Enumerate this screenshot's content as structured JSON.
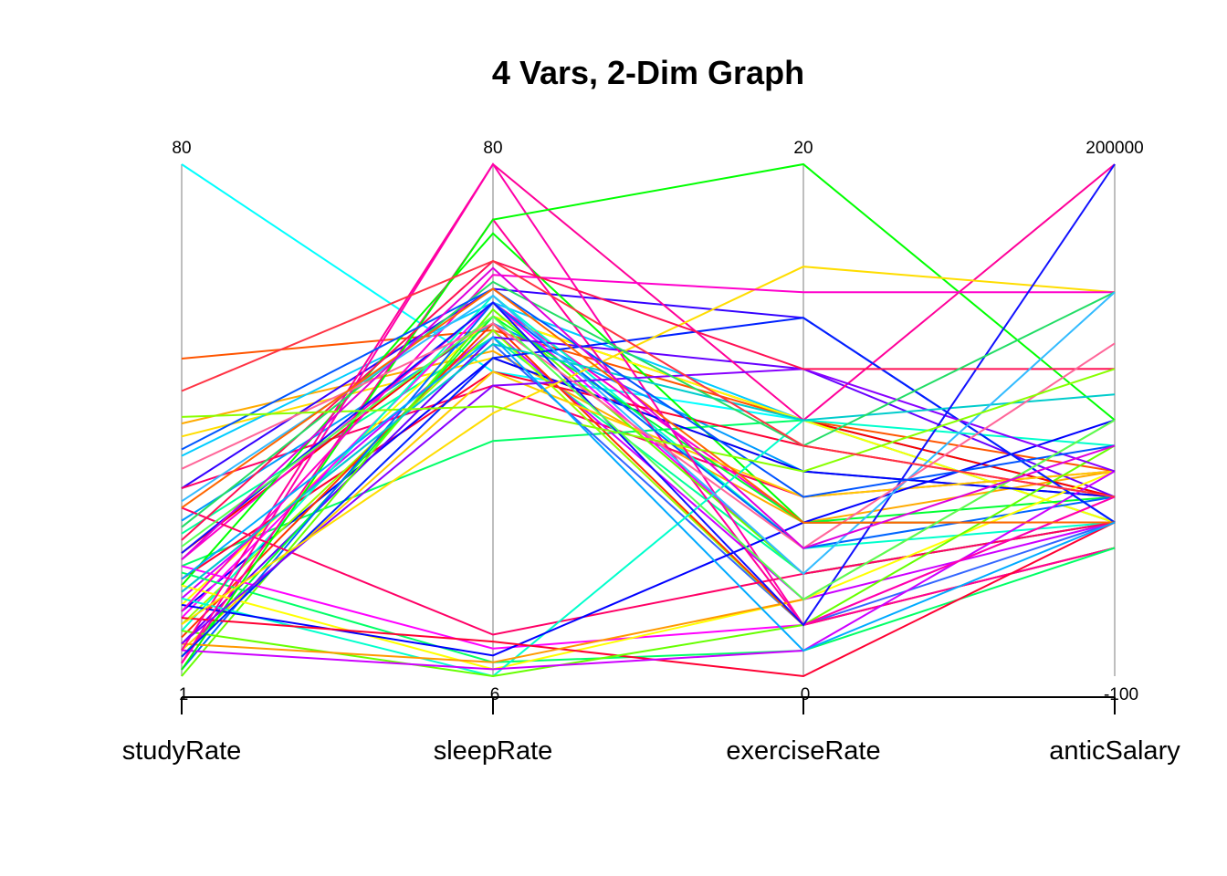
{
  "chart_data": {
    "type": "parallel_coordinates",
    "title": "4 Vars, 2-Dim Graph",
    "axes": [
      {
        "name": "studyRate",
        "min": 1,
        "max": 80,
        "min_label": "1",
        "max_label": "80"
      },
      {
        "name": "sleepRate",
        "min": 6,
        "max": 80,
        "min_label": "6",
        "max_label": "80"
      },
      {
        "name": "exerciseRate",
        "min": 0,
        "max": 20,
        "min_label": "0",
        "max_label": "20"
      },
      {
        "name": "anticSalary",
        "min": -100,
        "max": 200000,
        "min_label": "-100",
        "max_label": "200000"
      }
    ],
    "grid": false,
    "legend": "none",
    "records": [
      {
        "values": [
          80,
          50,
          10,
          60000
        ],
        "color": "#00FFFF"
      },
      {
        "values": [
          50,
          56,
          10,
          80000
        ],
        "color": "#FF5500"
      },
      {
        "values": [
          40,
          53,
          6,
          80000
        ],
        "color": "#FFAA00"
      },
      {
        "values": [
          38,
          52,
          8,
          70000
        ],
        "color": "#FFDD00"
      },
      {
        "values": [
          35,
          60,
          10,
          70000
        ],
        "color": "#00CCFF"
      },
      {
        "values": [
          30,
          62,
          14,
          60000
        ],
        "color": "#3300FF"
      },
      {
        "values": [
          30,
          48,
          7,
          80000
        ],
        "color": "#FF0066"
      },
      {
        "values": [
          25,
          57,
          8,
          70000
        ],
        "color": "#0099FF"
      },
      {
        "values": [
          23,
          55,
          4,
          60000
        ],
        "color": "#00FF99"
      },
      {
        "values": [
          20,
          58,
          10,
          70000
        ],
        "color": "#FF0000"
      },
      {
        "values": [
          19,
          60,
          6,
          60000
        ],
        "color": "#FF00CC"
      },
      {
        "values": [
          18,
          40,
          10,
          60000
        ],
        "color": "#00FF66"
      },
      {
        "values": [
          16,
          50,
          9,
          70000
        ],
        "color": "#FF0033"
      },
      {
        "values": [
          15,
          70,
          6,
          60000
        ],
        "color": "#00FF00"
      },
      {
        "values": [
          14,
          54,
          2,
          60000
        ],
        "color": "#3366FF"
      },
      {
        "values": [
          13,
          56,
          3,
          60000
        ],
        "color": "#CC00FF"
      },
      {
        "values": [
          12,
          58,
          10,
          60000
        ],
        "color": "#FFFF00"
      },
      {
        "values": [
          11,
          52,
          8,
          70000
        ],
        "color": "#0000FF"
      },
      {
        "values": [
          10,
          60,
          4,
          60000
        ],
        "color": "#FF00FF"
      },
      {
        "values": [
          9,
          56,
          2,
          50000
        ],
        "color": "#99FF00"
      },
      {
        "values": [
          8,
          61,
          5,
          60000
        ],
        "color": "#00FFCC"
      },
      {
        "values": [
          7,
          57,
          2,
          50000
        ],
        "color": "#FF3300"
      },
      {
        "values": [
          6,
          55,
          12,
          70000
        ],
        "color": "#6600FF"
      },
      {
        "values": [
          5,
          50,
          7,
          80000
        ],
        "color": "#FFCC00"
      },
      {
        "values": [
          4,
          58,
          6,
          70000
        ],
        "color": "#00FF33"
      },
      {
        "values": [
          3,
          72,
          2,
          50000
        ],
        "color": "#FF0099"
      },
      {
        "values": [
          2,
          60,
          5,
          70000
        ],
        "color": "#0066FF"
      },
      {
        "values": [
          1,
          59,
          4,
          60000
        ],
        "color": "#66FF00"
      },
      {
        "values": [
          27,
          12,
          4,
          60000
        ],
        "color": "#FF0066"
      },
      {
        "values": [
          18,
          10,
          2,
          70000
        ],
        "color": "#FF00FF"
      },
      {
        "values": [
          17,
          8,
          1,
          50000
        ],
        "color": "#00FF66"
      },
      {
        "values": [
          15,
          7,
          3,
          80000
        ],
        "color": "#FFFF00"
      },
      {
        "values": [
          13,
          6,
          10,
          90000
        ],
        "color": "#00FFCC"
      },
      {
        "values": [
          12,
          9,
          6,
          100000
        ],
        "color": "#0000FF"
      },
      {
        "values": [
          10,
          11,
          0,
          60000
        ],
        "color": "#FF0033"
      },
      {
        "values": [
          8,
          6,
          2,
          90000
        ],
        "color": "#66FF00"
      },
      {
        "values": [
          6,
          8,
          3,
          100000
        ],
        "color": "#FF9900"
      },
      {
        "values": [
          5,
          7,
          1,
          80000
        ],
        "color": "#CC00FF"
      },
      {
        "values": [
          5,
          80,
          10,
          200000
        ],
        "color": "#FF0099"
      },
      {
        "values": [
          3,
          80,
          2,
          70000
        ],
        "color": "#FF00AA"
      },
      {
        "values": [
          2,
          72,
          20,
          100000
        ],
        "color": "#00FF00"
      },
      {
        "values": [
          4,
          52,
          14,
          60000
        ],
        "color": "#0022FF"
      },
      {
        "values": [
          6,
          48,
          12,
          80000
        ],
        "color": "#8800FF"
      },
      {
        "values": [
          9,
          44,
          16,
          150000
        ],
        "color": "#FFDD00"
      },
      {
        "values": [
          11,
          64,
          15,
          150000
        ],
        "color": "#FF00CC"
      },
      {
        "values": [
          14,
          54,
          10,
          110000
        ],
        "color": "#00CCCC"
      },
      {
        "values": [
          20,
          60,
          2,
          200000
        ],
        "color": "#1111FF"
      },
      {
        "values": [
          22,
          66,
          12,
          120000
        ],
        "color": "#FF1155"
      },
      {
        "values": [
          24,
          63,
          9,
          150000
        ],
        "color": "#22DD66"
      },
      {
        "values": [
          28,
          61,
          4,
          150000
        ],
        "color": "#33BBFF"
      },
      {
        "values": [
          33,
          57,
          5,
          130000
        ],
        "color": "#FF6699"
      },
      {
        "values": [
          36,
          62,
          7,
          90000
        ],
        "color": "#0055FF"
      },
      {
        "values": [
          41,
          45,
          8,
          120000
        ],
        "color": "#88FF00"
      },
      {
        "values": [
          45,
          66,
          9,
          70000
        ],
        "color": "#FF3344"
      },
      {
        "values": [
          27,
          62,
          6,
          60000
        ],
        "color": "#FF6600"
      },
      {
        "values": [
          16,
          55,
          1,
          60000
        ],
        "color": "#00AAFF"
      },
      {
        "values": [
          21,
          58,
          3,
          100000
        ],
        "color": "#55FF55"
      },
      {
        "values": [
          19,
          65,
          5,
          90000
        ],
        "color": "#DD00DD"
      }
    ]
  }
}
